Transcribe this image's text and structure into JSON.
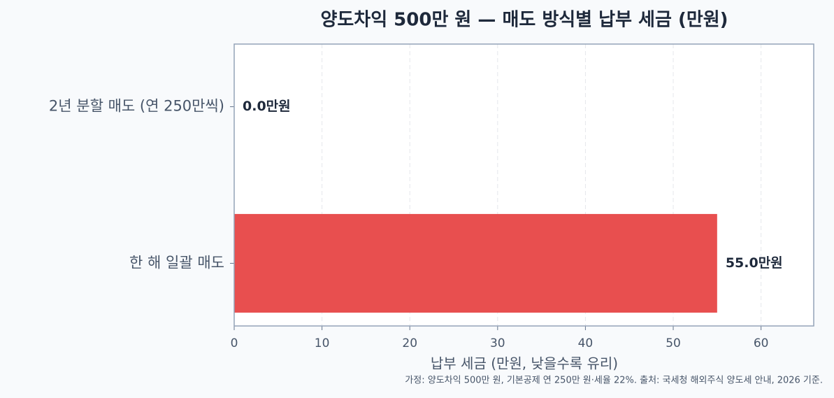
{
  "chart_data": {
    "type": "bar",
    "orientation": "horizontal",
    "title": "양도차익 500만 원 — 매도 방식별 납부 세금 (만원)",
    "categories": [
      "2년 분할 매도 (연 250만씩)",
      "한 해 일괄 매도"
    ],
    "values": [
      0,
      55
    ],
    "value_labels": [
      "0.0만원",
      "55.0만원"
    ],
    "color": "#e84f4f",
    "xlabel": "납부 세금 (만원, 낮을수록 유리)",
    "xlim": [
      0,
      66
    ],
    "xticks": [
      0,
      10,
      20,
      30,
      40,
      50,
      60
    ],
    "grid": true,
    "note": "가정: 양도차익 500만 원, 기본공제 연 250만 원·세율 22%. 출처: 국세청 해외주식 양도세 안내, 2026 기준."
  }
}
